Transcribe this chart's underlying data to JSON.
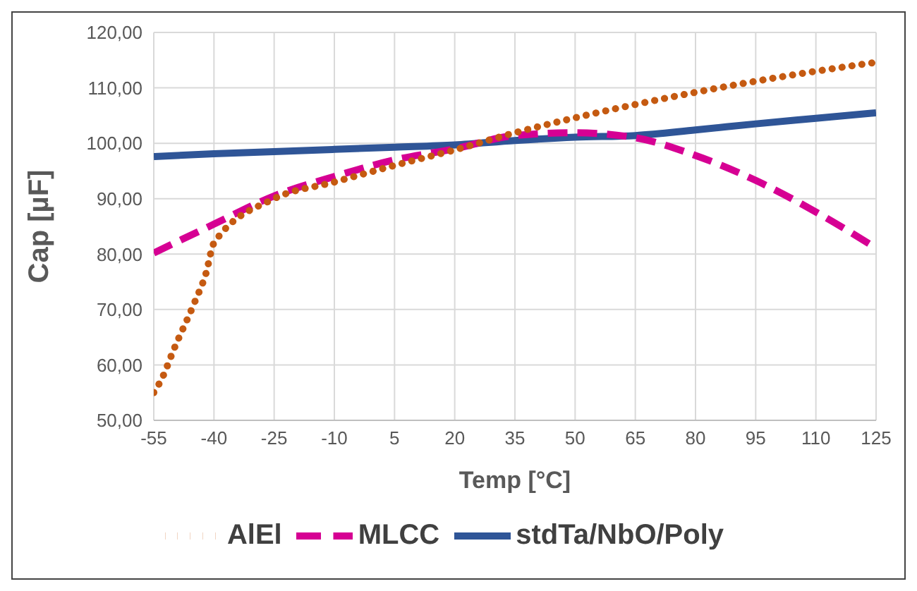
{
  "chart_data": {
    "type": "line",
    "xlabel": "Temp [°C]",
    "ylabel": "Cap [µF]",
    "xlim": [
      -55,
      125
    ],
    "xticks": [
      -55,
      -40,
      -25,
      -10,
      5,
      20,
      35,
      50,
      65,
      80,
      95,
      110,
      125
    ],
    "ylim": [
      50,
      120
    ],
    "yticks": [
      {
        "value": 50,
        "label": "50,00"
      },
      {
        "value": 60,
        "label": "60,00"
      },
      {
        "value": 70,
        "label": "70,00"
      },
      {
        "value": 80,
        "label": "80,00"
      },
      {
        "value": 90,
        "label": "90,00"
      },
      {
        "value": 100,
        "label": "100,00"
      },
      {
        "value": 110,
        "label": "110,00"
      },
      {
        "value": 120,
        "label": "120,00"
      }
    ],
    "grid": true,
    "legend": "bottom",
    "series": [
      {
        "name": "stdTa/NbO/Poly",
        "color": "#2f5597",
        "line_style": "solid",
        "x": [
          -55,
          -40,
          -25,
          -10,
          5,
          20,
          35,
          50,
          65,
          80,
          95,
          110,
          125
        ],
        "values": [
          97.6,
          98.1,
          98.5,
          98.9,
          99.3,
          99.7,
          100.5,
          101.1,
          101.4,
          102.4,
          103.5,
          104.5,
          105.5
        ]
      },
      {
        "name": "MLCC",
        "color": "#d60093",
        "line_style": "dashed",
        "x": [
          -55,
          -40,
          -25,
          -10,
          5,
          20,
          35,
          50,
          65,
          80,
          95,
          110,
          125
        ],
        "values": [
          80.2,
          85.4,
          90.5,
          94,
          97,
          99,
          101.4,
          101.9,
          101,
          97.8,
          93.3,
          87.6,
          81.1
        ]
      },
      {
        "name": "AlEl",
        "color": "#c55a11",
        "line_style": "dotted",
        "x": [
          -55,
          -53,
          -50,
          -45,
          -42,
          -40,
          -25,
          -10,
          5,
          20,
          35,
          50,
          65,
          80,
          95,
          110,
          125
        ],
        "values": [
          55,
          57.5,
          62.8,
          71,
          76.5,
          82,
          90,
          93,
          96,
          98.8,
          101.9,
          104.6,
          107,
          109.2,
          111.2,
          113,
          114.6
        ]
      }
    ]
  }
}
